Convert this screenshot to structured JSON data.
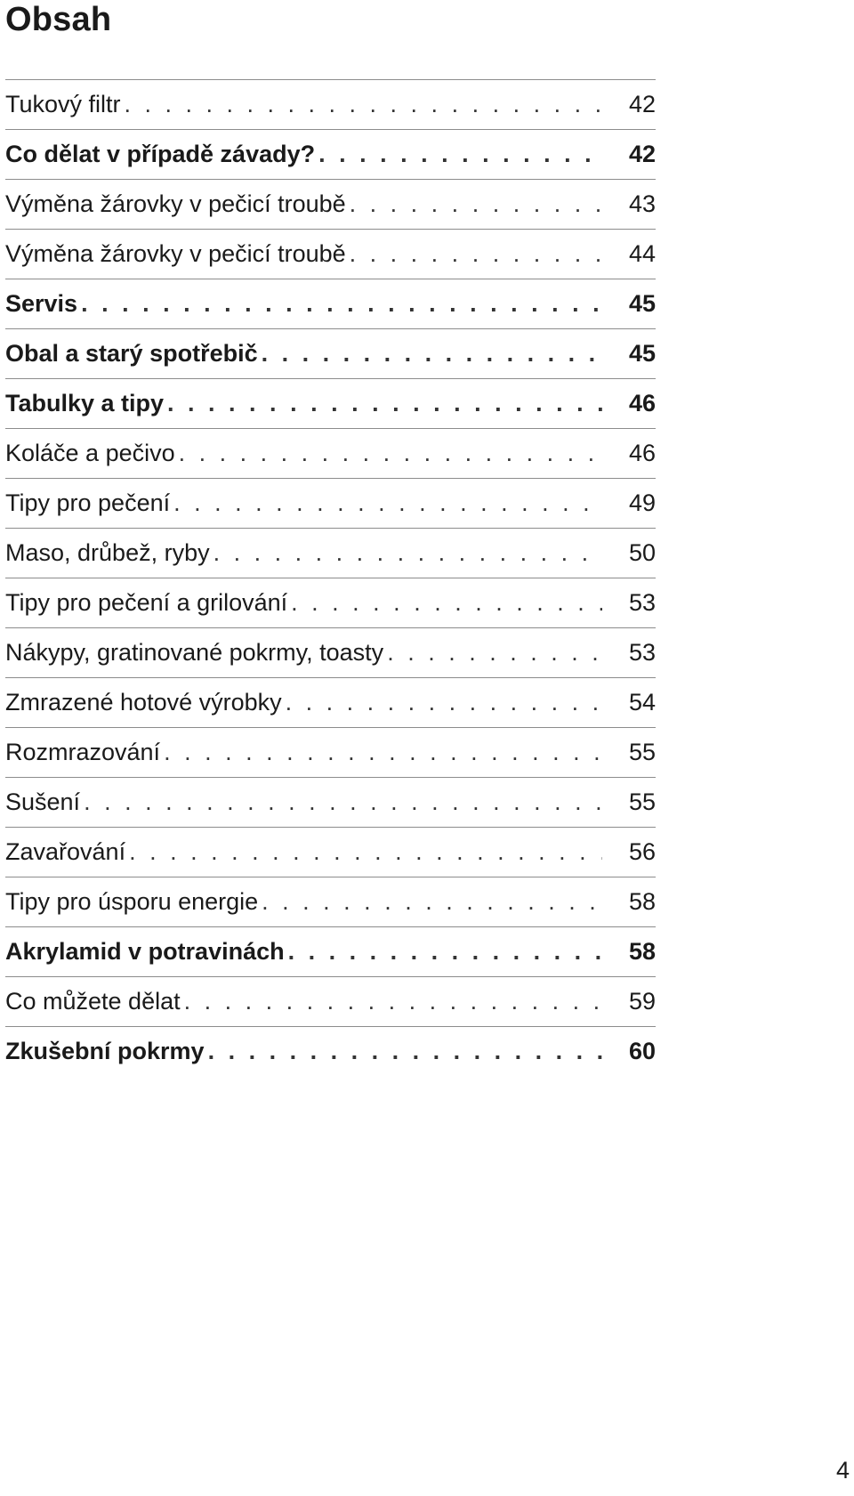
{
  "title": "Obsah",
  "page_number": "4",
  "entries": [
    {
      "label": "Tukový filtr",
      "page": "42",
      "bold": false
    },
    {
      "label": "Co dělat v případě závady?",
      "page": "42",
      "bold": true
    },
    {
      "label": "Výměna žárovky v pečicí troubě",
      "page": "43",
      "bold": false
    },
    {
      "label": "Výměna žárovky v pečicí troubě",
      "page": "44",
      "bold": false
    },
    {
      "label": "Servis",
      "page": "45",
      "bold": true
    },
    {
      "label": "Obal a starý spotřebič",
      "page": "45",
      "bold": true
    },
    {
      "label": "Tabulky a tipy",
      "page": "46",
      "bold": true
    },
    {
      "label": "Koláče a pečivo",
      "page": "46",
      "bold": false
    },
    {
      "label": "Tipy pro pečení",
      "page": "49",
      "bold": false
    },
    {
      "label": "Maso, drůbež, ryby",
      "page": "50",
      "bold": false
    },
    {
      "label": "Tipy pro pečení a grilování",
      "page": "53",
      "bold": false
    },
    {
      "label": "Nákypy, gratinované pokrmy, toasty",
      "page": "53",
      "bold": false
    },
    {
      "label": "Zmrazené hotové výrobky",
      "page": "54",
      "bold": false
    },
    {
      "label": "Rozmrazování",
      "page": "55",
      "bold": false
    },
    {
      "label": "Sušení",
      "page": "55",
      "bold": false
    },
    {
      "label": "Zavařování",
      "page": "56",
      "bold": false
    },
    {
      "label": "Tipy pro úsporu energie",
      "page": "58",
      "bold": false
    },
    {
      "label": "Akrylamid v potravinách",
      "page": "58",
      "bold": true
    },
    {
      "label": "Co můžete dělat",
      "page": "59",
      "bold": false
    },
    {
      "label": "Zkušební pokrmy",
      "page": "60",
      "bold": true
    }
  ]
}
